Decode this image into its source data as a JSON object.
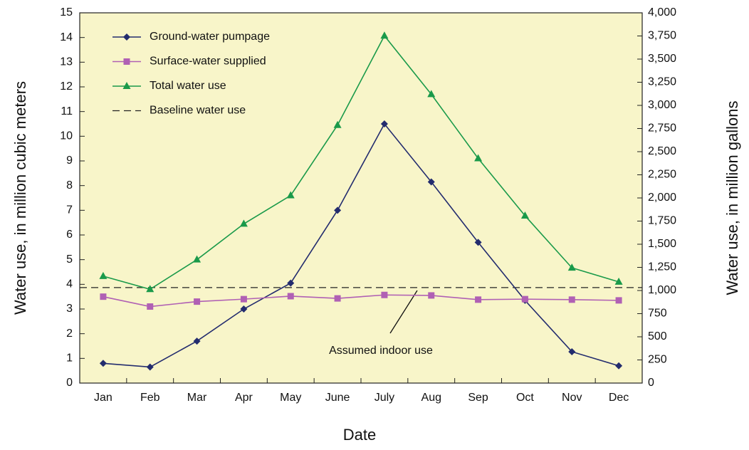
{
  "chart_data": {
    "type": "line",
    "x_label": "Date",
    "y_label": "Water use, in million cubic meters",
    "y2_label": "Water use, in million gallons",
    "categories": [
      "Jan",
      "Feb",
      "Mar",
      "Apr",
      "May",
      "June",
      "July",
      "Aug",
      "Sep",
      "Oct",
      "Nov",
      "Dec"
    ],
    "series": [
      {
        "name": "Ground-water pumpage",
        "color": "#232c6e",
        "marker": "diamond",
        "values": [
          0.8,
          0.65,
          1.7,
          3.0,
          4.05,
          7.0,
          10.5,
          8.15,
          5.7,
          3.35,
          1.27,
          0.7
        ]
      },
      {
        "name": "Surface-water supplied",
        "color": "#b060b4",
        "marker": "square",
        "values": [
          3.5,
          3.1,
          3.3,
          3.4,
          3.52,
          3.43,
          3.57,
          3.55,
          3.38,
          3.4,
          3.38,
          3.35
        ]
      },
      {
        "name": "Total water use",
        "color": "#1a9a4a",
        "marker": "triangle",
        "values": [
          4.33,
          3.8,
          5.0,
          6.45,
          7.6,
          10.45,
          14.07,
          11.7,
          9.1,
          6.78,
          4.67,
          4.1
        ]
      }
    ],
    "baseline": {
      "name": "Baseline water use",
      "value": 3.87,
      "color": "#222222"
    },
    "annotation": {
      "text": "Assumed indoor use"
    },
    "plot_background": "#f8f5c9",
    "legend": "upper left",
    "ylim": [
      0,
      15
    ],
    "yticks": [
      0,
      1,
      2,
      3,
      4,
      5,
      6,
      7,
      8,
      9,
      10,
      11,
      12,
      13,
      14,
      15
    ],
    "y2lim": [
      0,
      4000
    ],
    "y2ticks": [
      0,
      250,
      500,
      750,
      {
        "value": 1000,
        "label": "1,000"
      },
      {
        "value": 1250,
        "label": "1,250"
      },
      {
        "value": 1500,
        "label": "1,500"
      },
      {
        "value": 1750,
        "label": "1,750"
      },
      {
        "value": 2000,
        "label": "2,000"
      },
      {
        "value": 2250,
        "label": "2,250"
      },
      {
        "value": 2500,
        "label": "2,500"
      },
      {
        "value": 2750,
        "label": "2,750"
      },
      {
        "value": 3000,
        "label": "3,000"
      },
      {
        "value": 3250,
        "label": "3,250"
      },
      {
        "value": 3500,
        "label": "3,500"
      },
      {
        "value": 3750,
        "label": "3,750"
      },
      {
        "value": 4000,
        "label": "4,000"
      }
    ]
  }
}
